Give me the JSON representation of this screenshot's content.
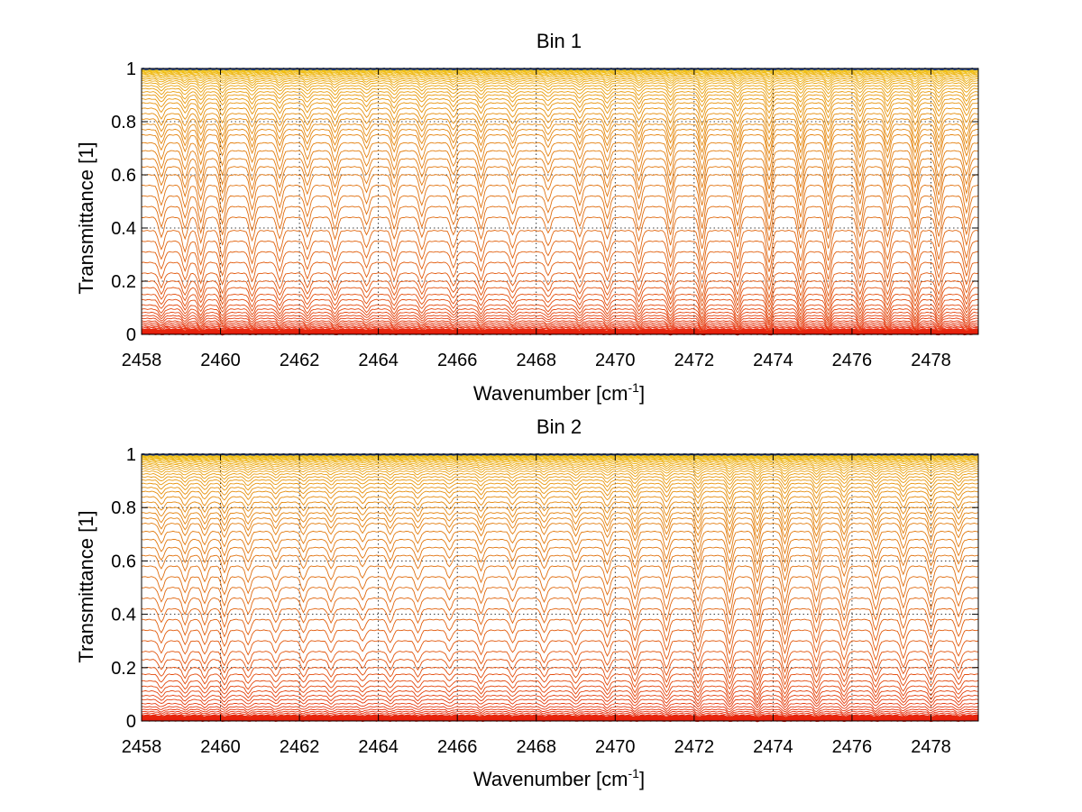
{
  "chart_data": [
    {
      "type": "line",
      "title": "Bin 1",
      "xlabel": "Wavenumber [cm",
      "xlabel_sup": "-1",
      "xlabel_end": "]",
      "ylabel": "Transmittance [1]",
      "xlim": [
        2458,
        2479.2
      ],
      "ylim": [
        0,
        1
      ],
      "xticks": [
        "2458",
        "2460",
        "2462",
        "2464",
        "2466",
        "2468",
        "2470",
        "2472",
        "2474",
        "2476",
        "2478"
      ],
      "yticks": [
        "0",
        "0.2",
        "0.4",
        "0.6",
        "0.8",
        "1"
      ],
      "grid": true,
      "legend": "none",
      "series_count": 60,
      "series_baselines": [
        0.004,
        0.007,
        0.01,
        0.013,
        0.016,
        0.02,
        0.025,
        0.03,
        0.036,
        0.043,
        0.05,
        0.06,
        0.07,
        0.082,
        0.095,
        0.11,
        0.13,
        0.15,
        0.175,
        0.2,
        0.23,
        0.27,
        0.31,
        0.35,
        0.39,
        0.44,
        0.48,
        0.52,
        0.56,
        0.6,
        0.63,
        0.66,
        0.69,
        0.72,
        0.75,
        0.77,
        0.79,
        0.81,
        0.83,
        0.85,
        0.87,
        0.885,
        0.9,
        0.912,
        0.924,
        0.935,
        0.945,
        0.953,
        0.96,
        0.966,
        0.972,
        0.977,
        0.981,
        0.985,
        0.988,
        0.991,
        0.993,
        0.995,
        0.997,
        0.998
      ],
      "absorption_lines": [
        {
          "x": 2458.5,
          "depth": 0.5
        },
        {
          "x": 2459.1,
          "depth": 0.55
        },
        {
          "x": 2459.5,
          "depth": 0.65
        },
        {
          "x": 2460.05,
          "depth": 0.7
        },
        {
          "x": 2460.8,
          "depth": 0.6
        },
        {
          "x": 2461.5,
          "depth": 0.55
        },
        {
          "x": 2462.2,
          "depth": 0.5
        },
        {
          "x": 2462.9,
          "depth": 0.55
        },
        {
          "x": 2463.7,
          "depth": 0.45
        },
        {
          "x": 2464.4,
          "depth": 0.55
        },
        {
          "x": 2465.1,
          "depth": 0.5
        },
        {
          "x": 2465.9,
          "depth": 0.45
        },
        {
          "x": 2466.6,
          "depth": 0.55
        },
        {
          "x": 2467.4,
          "depth": 0.45
        },
        {
          "x": 2468.3,
          "depth": 0.4
        },
        {
          "x": 2469.1,
          "depth": 0.5
        },
        {
          "x": 2469.8,
          "depth": 0.55
        },
        {
          "x": 2470.6,
          "depth": 0.6
        },
        {
          "x": 2471.4,
          "depth": 0.7
        },
        {
          "x": 2472.2,
          "depth": 0.8
        },
        {
          "x": 2473.1,
          "depth": 0.75
        },
        {
          "x": 2473.9,
          "depth": 0.85
        },
        {
          "x": 2474.7,
          "depth": 0.8
        },
        {
          "x": 2475.4,
          "depth": 0.8
        },
        {
          "x": 2476.2,
          "depth": 0.75
        },
        {
          "x": 2476.9,
          "depth": 0.75
        },
        {
          "x": 2477.6,
          "depth": 0.8
        },
        {
          "x": 2478.2,
          "depth": 0.75
        },
        {
          "x": 2478.9,
          "depth": 0.7
        }
      ],
      "colors": {
        "low": "#e8180c",
        "mid": "#e06f10",
        "high": "#f2ca10",
        "top": "#1d3d8f",
        "grid": "#000000"
      }
    },
    {
      "type": "line",
      "title": "Bin 2",
      "xlabel": "Wavenumber [cm",
      "xlabel_sup": "-1",
      "xlabel_end": "]",
      "ylabel": "Transmittance [1]",
      "xlim": [
        2458,
        2479.2
      ],
      "ylim": [
        0,
        1
      ],
      "xticks": [
        "2458",
        "2460",
        "2462",
        "2464",
        "2466",
        "2468",
        "2470",
        "2472",
        "2474",
        "2476",
        "2478"
      ],
      "yticks": [
        "0",
        "0.2",
        "0.4",
        "0.6",
        "0.8",
        "1"
      ],
      "grid": true,
      "legend": "none",
      "series_count": 60,
      "series_baselines": [
        0.004,
        0.007,
        0.01,
        0.013,
        0.017,
        0.022,
        0.028,
        0.035,
        0.043,
        0.053,
        0.065,
        0.08,
        0.095,
        0.112,
        0.13,
        0.15,
        0.175,
        0.2,
        0.23,
        0.26,
        0.3,
        0.34,
        0.38,
        0.42,
        0.46,
        0.5,
        0.54,
        0.58,
        0.62,
        0.65,
        0.68,
        0.71,
        0.74,
        0.76,
        0.78,
        0.8,
        0.82,
        0.84,
        0.86,
        0.875,
        0.89,
        0.903,
        0.915,
        0.926,
        0.936,
        0.945,
        0.953,
        0.96,
        0.966,
        0.972,
        0.977,
        0.981,
        0.985,
        0.988,
        0.991,
        0.993,
        0.995,
        0.997,
        0.998,
        0.999
      ],
      "absorption_lines": [
        {
          "x": 2458.5,
          "depth": 0.35
        },
        {
          "x": 2459.1,
          "depth": 0.4
        },
        {
          "x": 2459.6,
          "depth": 0.4
        },
        {
          "x": 2460.1,
          "depth": 0.45
        },
        {
          "x": 2460.7,
          "depth": 0.4
        },
        {
          "x": 2461.4,
          "depth": 0.35
        },
        {
          "x": 2462.1,
          "depth": 0.35
        },
        {
          "x": 2462.8,
          "depth": 0.35
        },
        {
          "x": 2463.6,
          "depth": 0.3
        },
        {
          "x": 2464.3,
          "depth": 0.35
        },
        {
          "x": 2465.0,
          "depth": 0.35
        },
        {
          "x": 2465.8,
          "depth": 0.3
        },
        {
          "x": 2466.6,
          "depth": 0.4
        },
        {
          "x": 2467.4,
          "depth": 0.35
        },
        {
          "x": 2468.2,
          "depth": 0.35
        },
        {
          "x": 2469.0,
          "depth": 0.4
        },
        {
          "x": 2469.8,
          "depth": 0.45
        },
        {
          "x": 2470.5,
          "depth": 0.55
        },
        {
          "x": 2471.3,
          "depth": 0.55
        },
        {
          "x": 2472.1,
          "depth": 0.6
        },
        {
          "x": 2472.9,
          "depth": 0.65
        },
        {
          "x": 2473.6,
          "depth": 0.7
        },
        {
          "x": 2474.3,
          "depth": 0.65
        },
        {
          "x": 2475.1,
          "depth": 0.6
        },
        {
          "x": 2475.8,
          "depth": 0.55
        },
        {
          "x": 2476.6,
          "depth": 0.55
        },
        {
          "x": 2477.3,
          "depth": 0.5
        },
        {
          "x": 2478.0,
          "depth": 0.5
        },
        {
          "x": 2478.7,
          "depth": 0.45
        }
      ],
      "colors": {
        "low": "#e8180c",
        "mid": "#e06f10",
        "high": "#f2ca10",
        "top": "#1d3d8f",
        "grid": "#000000"
      }
    }
  ]
}
